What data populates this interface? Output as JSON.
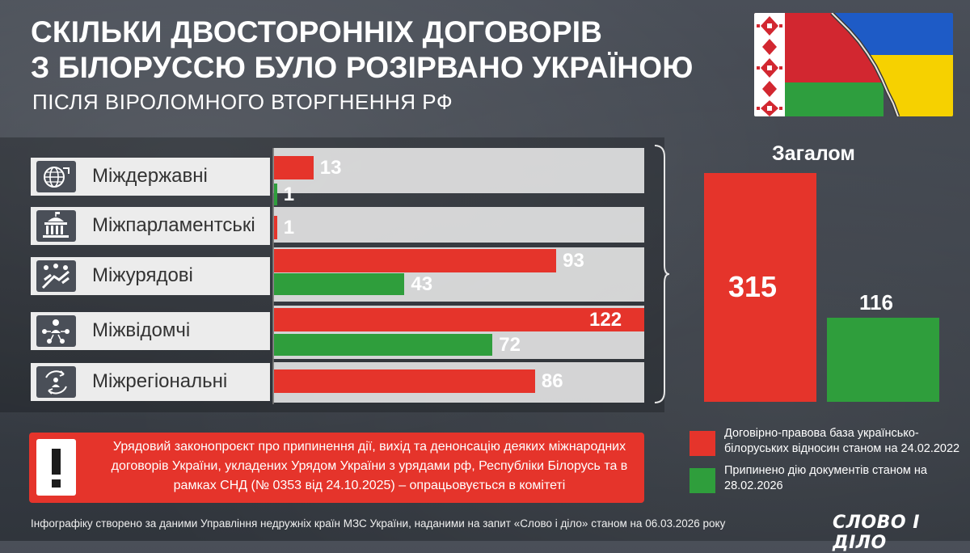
{
  "header": {
    "title_line1": "Скільки двосторонніх договорів",
    "title_line2": "з Білоруссю було розірвано Україною",
    "subtitle": "ПІСЛЯ ВІРОЛОМНОГО ВТОРГНЕННЯ РФ"
  },
  "colors": {
    "base": "#e5342b",
    "terminated": "#2f9e3c"
  },
  "rows": [
    {
      "label": "Міждержавні",
      "icon": "globe-icon"
    },
    {
      "label": "Міжпарламентські",
      "icon": "parliament-icon"
    },
    {
      "label": "Міжурядові",
      "icon": "handshake-icon"
    },
    {
      "label": "Міжвідомчі",
      "icon": "network-icon"
    },
    {
      "label": "Міжрегіональні",
      "icon": "cycle-people-icon"
    }
  ],
  "chart_data": [
    {
      "type": "bar",
      "orientation": "horizontal",
      "categories": [
        "Міждержавні",
        "Міжпарламентські",
        "Міжурядові",
        "Міжвідомчі",
        "Міжрегіональні"
      ],
      "series": [
        {
          "name": "Договірно-правова база українсько-білоруських відносин станом на 24.02.2022",
          "color": "#e5342b",
          "values": [
            13,
            1,
            93,
            122,
            86
          ]
        },
        {
          "name": "Припинено дію документів станом на 28.02.2026",
          "color": "#2f9e3c",
          "values": [
            1,
            null,
            43,
            72,
            null
          ]
        }
      ],
      "xlim": [
        0,
        122
      ],
      "grid": false,
      "legend": "bottom-right"
    },
    {
      "type": "bar",
      "title": "Загалом",
      "categories": [
        "Договірно-правова база",
        "Припинено"
      ],
      "values": [
        315,
        116
      ],
      "colors": [
        "#e5342b",
        "#2f9e3c"
      ],
      "ylim": [
        0,
        315
      ]
    }
  ],
  "totals": {
    "title": "Загалом"
  },
  "legend": {
    "base": "Договірно-правова база українсько-білоруських відносин станом на 24.02.2022",
    "terminated": "Припинено дію документів станом на 28.02.2026"
  },
  "notice": {
    "icon": "exclamation-icon",
    "text": "Урядовий законопроєкт про припинення дії, вихід та денонсацію деяких міжнародних договорів України, укладених Урядом України з урядами рф, Республіки Білорусь та в рамках СНД (№ 0353 від 24.10.2025) – опрацьовується в комітеті"
  },
  "footer": {
    "source": "Інфографіку створено за даними Управління недружніх країн МЗС України, наданими на запит «Слово і діло» станом на 06.03.2026 року",
    "logo": "СЛОВО І ДІЛО"
  }
}
